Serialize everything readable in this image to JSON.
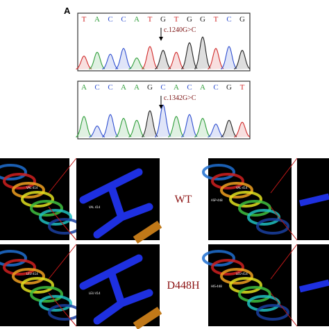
{
  "panel_label": "A",
  "base_colors": {
    "A": "#2f9e3a",
    "C": "#2f4fd0",
    "G": "#222222",
    "T": "#d02a2a"
  },
  "chromatograms": [
    {
      "bases": [
        "T",
        "A",
        "C",
        "C",
        "A",
        "T",
        "G",
        "T",
        "G",
        "G",
        "T",
        "C",
        "G"
      ],
      "mutation": "c.1240G>C"
    },
    {
      "bases": [
        "A",
        "C",
        "C",
        "A",
        "A",
        "G",
        "C",
        "A",
        "C",
        "A",
        "C",
        "G",
        "T"
      ],
      "mutation": "c.1342G>C"
    }
  ],
  "rows": [
    {
      "label": "WT",
      "residue_left": "VAL-414",
      "residue_zoom": "VAL 414",
      "residue_right": "VAL-414",
      "residue_right2": "ASP-448"
    },
    {
      "label": "D448H",
      "residue_left": "LEU-414",
      "residue_zoom": "LEU 414",
      "residue_right": "LEU-414",
      "residue_right2": "HIS-448"
    }
  ]
}
